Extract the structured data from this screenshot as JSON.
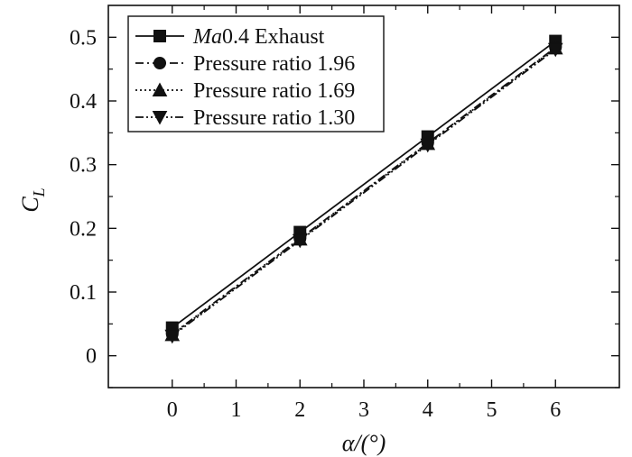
{
  "chart_data": {
    "type": "line",
    "x": [
      0,
      2,
      4,
      6
    ],
    "xlim": [
      -1,
      7
    ],
    "ylim": [
      -0.05,
      0.55
    ],
    "xticks": [
      "0",
      "1",
      "2",
      "3",
      "4",
      "5",
      "6"
    ],
    "yticks": [
      "0",
      "0.1",
      "0.2",
      "0.3",
      "0.4",
      "0.5"
    ],
    "xlabel": "α/(°)",
    "ylabel_main": "C",
    "ylabel_sub": "L",
    "grid": false,
    "legend_position": "top-left",
    "series": [
      {
        "name_prefix": "Ma",
        "name_rest": "0.4 Exhaust",
        "marker": "square",
        "dash": "solid",
        "values": [
          0.044,
          0.194,
          0.344,
          0.494
        ]
      },
      {
        "name_prefix": "",
        "name_rest": "Pressure ratio 1.96",
        "marker": "circle",
        "dash": "dash-dot",
        "values": [
          0.034,
          0.184,
          0.334,
          0.484
        ]
      },
      {
        "name_prefix": "",
        "name_rest": "Pressure ratio 1.69",
        "marker": "triangle-up",
        "dash": "dotted",
        "values": [
          0.033,
          0.183,
          0.333,
          0.483
        ]
      },
      {
        "name_prefix": "",
        "name_rest": "Pressure ratio 1.30",
        "marker": "triangle-down",
        "dash": "dash-dot-dot",
        "values": [
          0.031,
          0.181,
          0.331,
          0.481
        ]
      }
    ]
  }
}
